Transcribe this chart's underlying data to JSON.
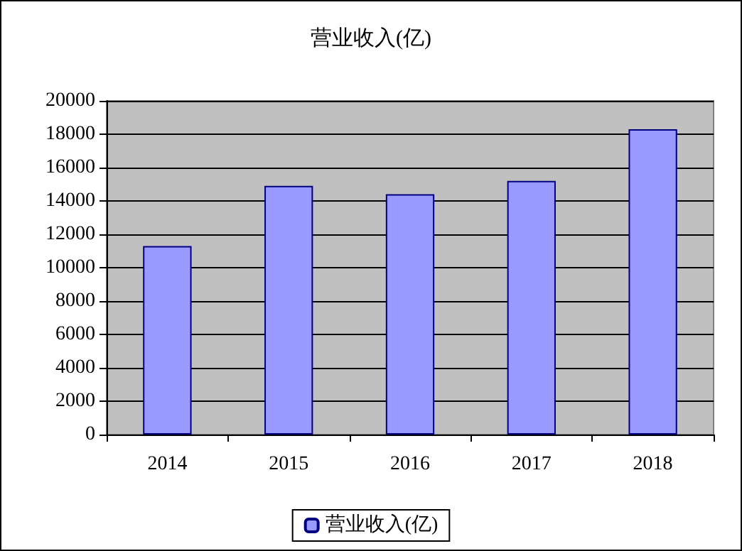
{
  "chart_data": {
    "type": "bar",
    "title": "营业收入(亿)",
    "categories": [
      "2014",
      "2015",
      "2016",
      "2017",
      "2018"
    ],
    "series": [
      {
        "name": "营业收入(亿)",
        "color": "#9999ff",
        "values": [
          11300,
          14900,
          14400,
          15200,
          18300
        ]
      }
    ],
    "ylim": [
      0,
      20000
    ],
    "yticks": [
      0,
      2000,
      4000,
      6000,
      8000,
      10000,
      12000,
      14000,
      16000,
      18000,
      20000
    ],
    "grid": "y",
    "legend": "bottom"
  }
}
